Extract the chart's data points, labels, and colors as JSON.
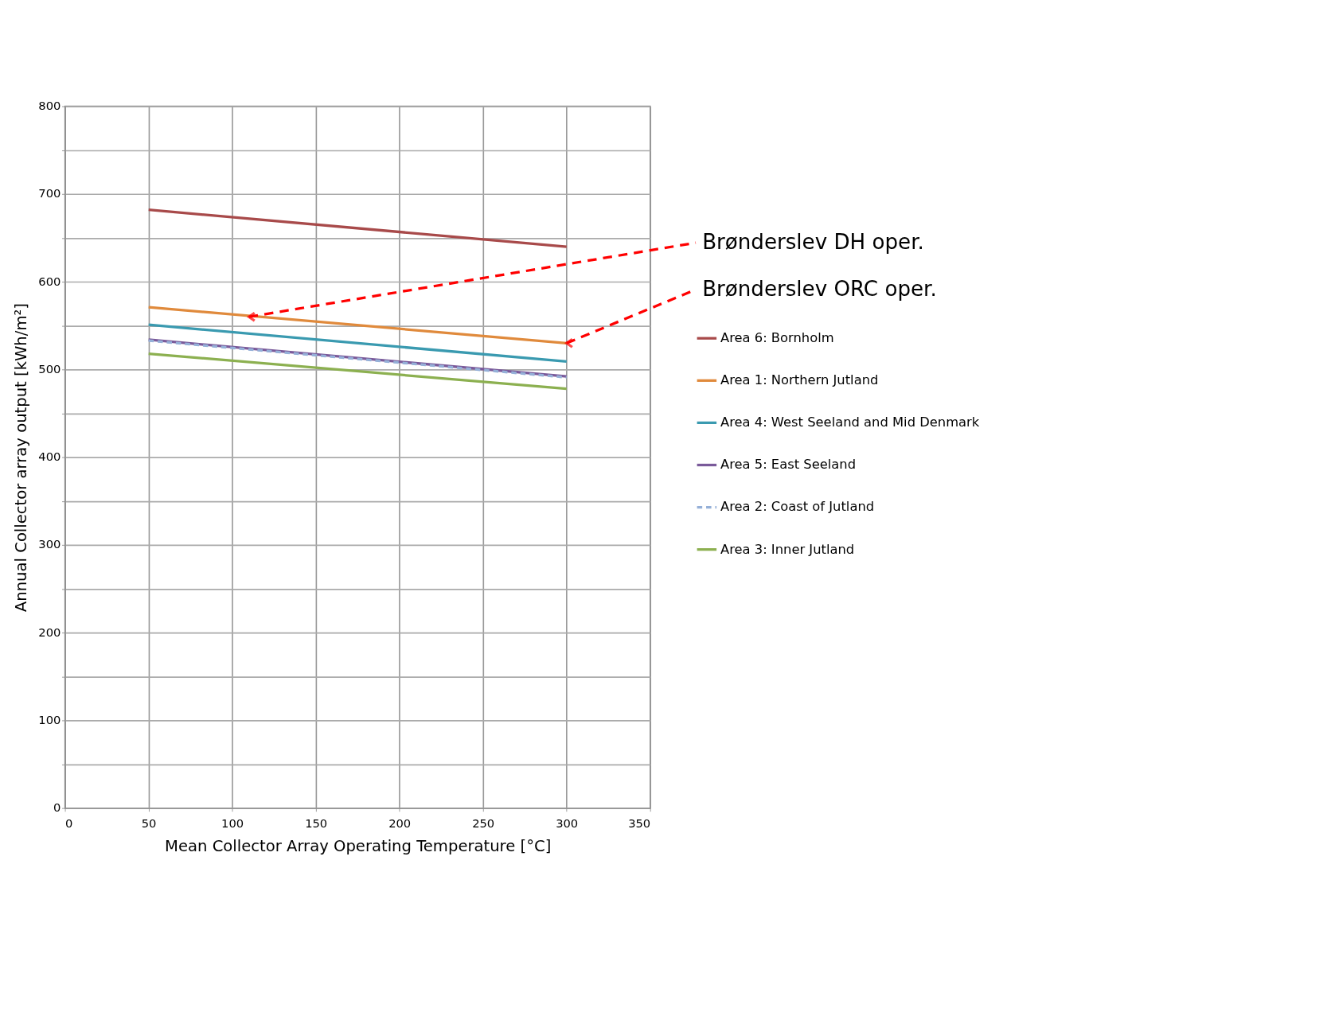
{
  "chart_data": {
    "type": "line",
    "xlabel": "Mean Collector Array Operating Temperature [°C]",
    "ylabel": "Annual Collector array output [kWh/m²]",
    "x": [
      50,
      300
    ],
    "xlim": [
      0,
      350
    ],
    "xticks": [
      0,
      50,
      100,
      150,
      200,
      250,
      300,
      350
    ],
    "ylim": [
      0,
      800
    ],
    "yticks": [
      0,
      {
        "value": 50,
        "label": null
      },
      100,
      {
        "value": 150,
        "label": null
      },
      200,
      {
        "value": 250,
        "label": null
      },
      300,
      {
        "value": 350,
        "label": null
      },
      400,
      {
        "value": 450,
        "label": null
      },
      500,
      {
        "value": 550,
        "label": null
      },
      600,
      {
        "value": 650,
        "label": null
      },
      700,
      {
        "value": 750,
        "label": null
      },
      800
    ],
    "grid": true,
    "legend": "right",
    "marker": "none",
    "series": [
      {
        "name": "Area 6: Bornholm",
        "color": "#a84a4a",
        "values": [
          682,
          640
        ]
      },
      {
        "name": "Area 1: Northern Jutland",
        "color": "#e08a3c",
        "values": [
          571,
          530
        ]
      },
      {
        "name": "Area 4: West Seeland and Mid Denmark",
        "color": "#3a9ab0",
        "values": [
          551,
          509
        ]
      },
      {
        "name": "Area 5: East Seeland",
        "color": "#7a5a9a",
        "values": [
          534,
          492
        ]
      },
      {
        "name": "Area 2: Coast of Jutland",
        "color": "#95b0d8",
        "values": [
          533,
          491
        ],
        "line_style": "dashed"
      },
      {
        "name": "Area 3: Inner Jutland",
        "color": "#8cb050",
        "values": [
          518,
          478
        ]
      }
    ],
    "annotations": [
      {
        "text": "Brønderslev DH oper.",
        "x": 110,
        "y": 560
      },
      {
        "text": "Brønderslev ORC oper.",
        "x": 300,
        "y": 530
      }
    ]
  }
}
